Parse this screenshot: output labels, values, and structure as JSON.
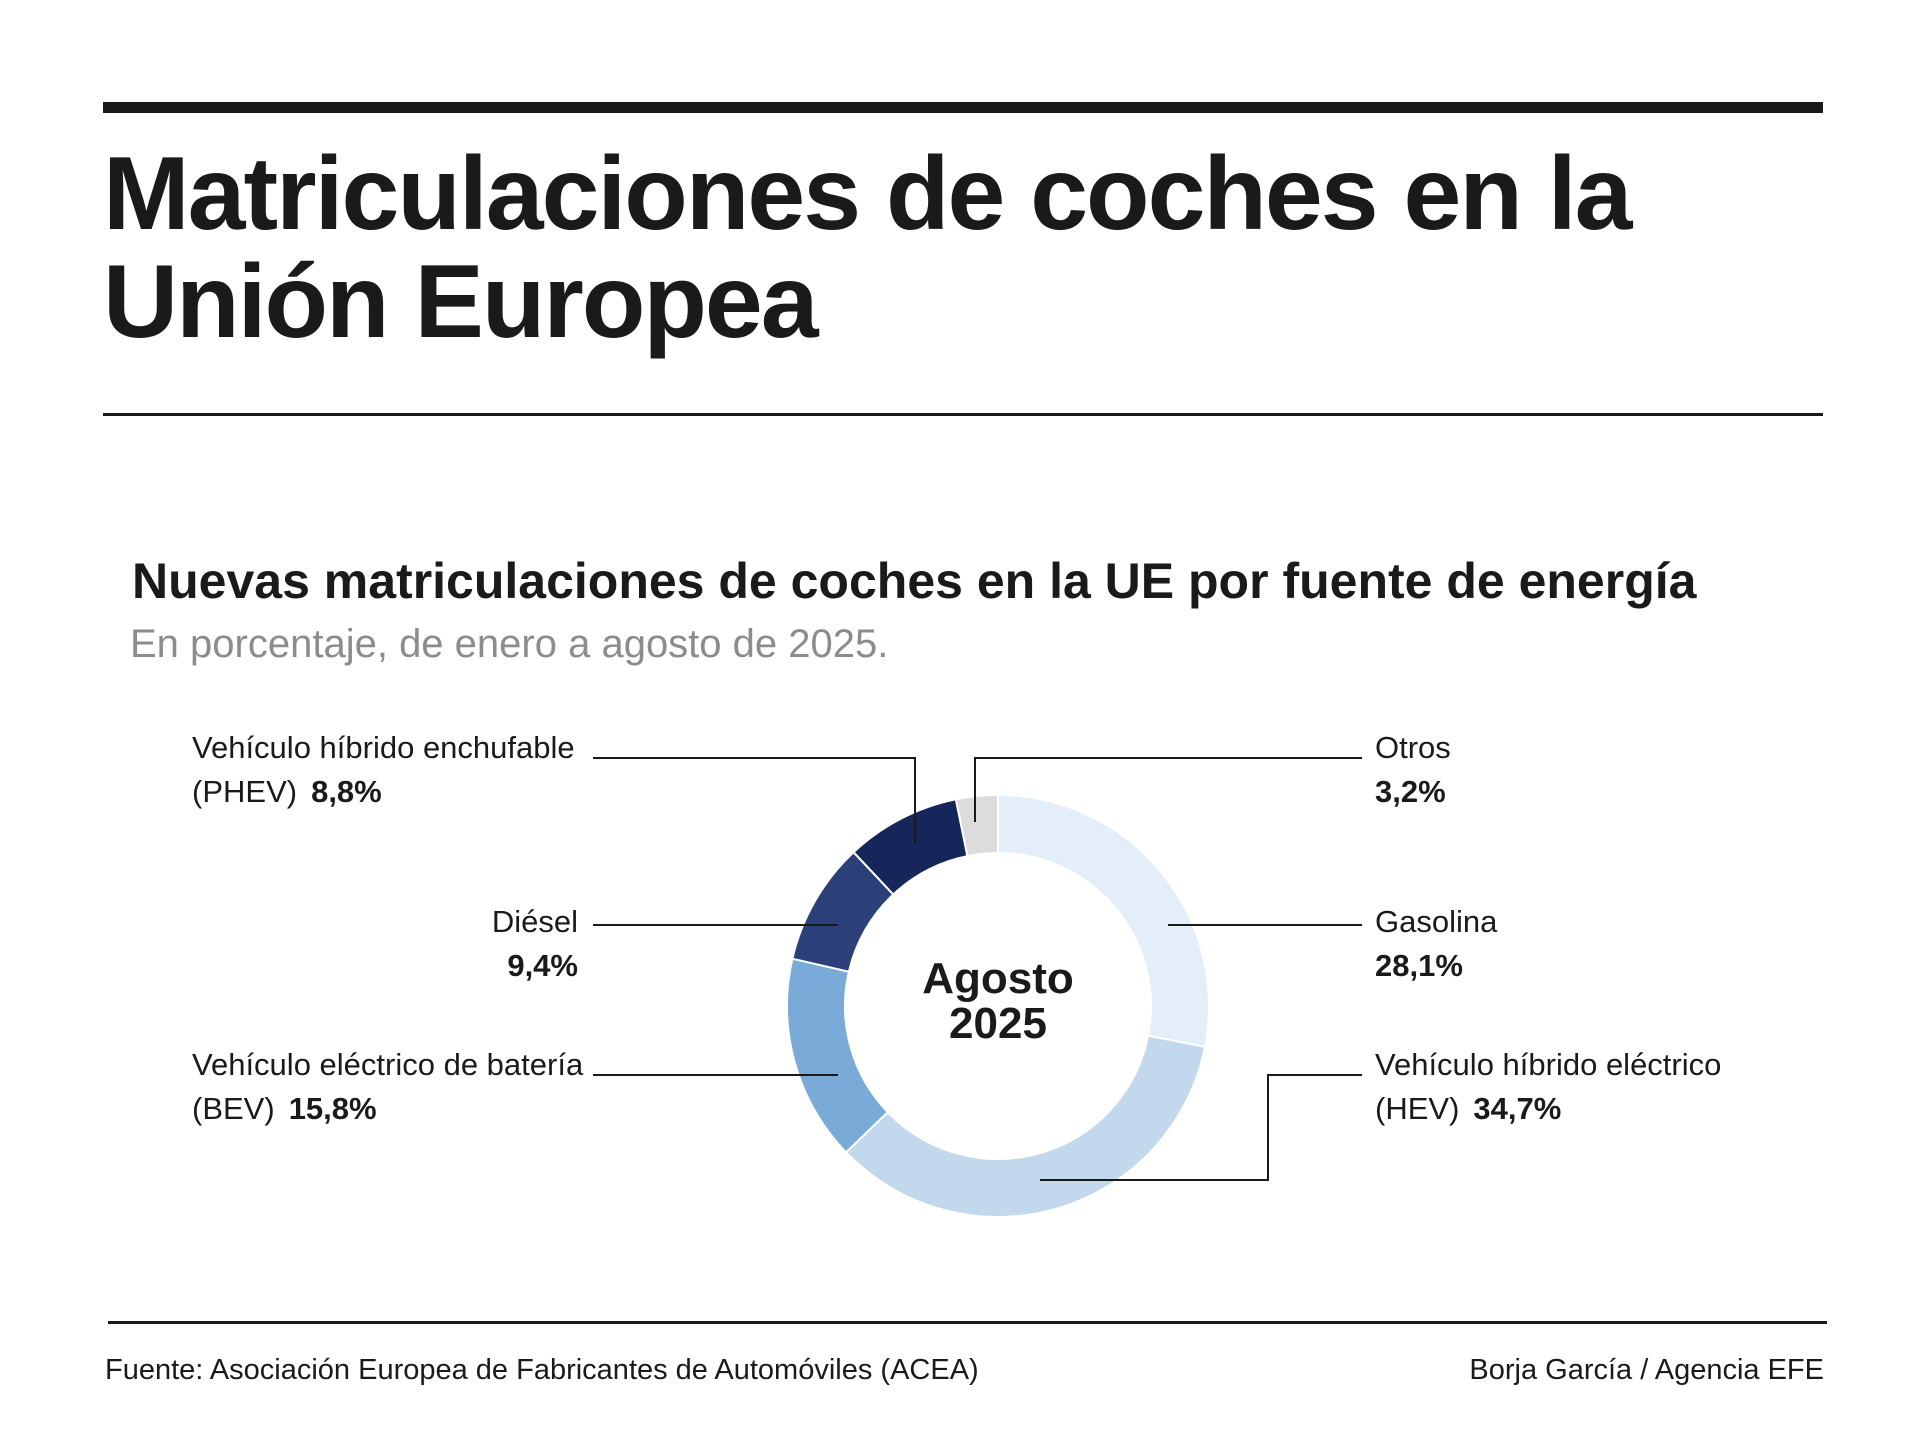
{
  "header": {
    "title": "Matriculaciones de coches en la Unión Europea"
  },
  "chart_data": {
    "type": "pie",
    "title": "Nuevas matriculaciones de coches en la UE por fuente de energía",
    "subtitle": "En porcentaje, de enero a agosto de 2025.",
    "center_label": [
      "Agosto",
      "2025"
    ],
    "slices": [
      {
        "key": "gasolina",
        "label": [
          "Gasolina"
        ],
        "value": 28.1,
        "value_label": "28,1%",
        "color": "#e3eef8"
      },
      {
        "key": "hev",
        "label": [
          "Vehículo híbrido eléctrico",
          "(HEV)"
        ],
        "value": 34.7,
        "value_label": "34,7%",
        "color": "#c2d8ec"
      },
      {
        "key": "bev",
        "label": [
          "Vehículo eléctrico de batería",
          "(BEV)"
        ],
        "value": 15.8,
        "value_label": "15,8%",
        "color": "#79aad8"
      },
      {
        "key": "diesel",
        "label": [
          "Diésel"
        ],
        "value": 9.4,
        "value_label": "9,4%",
        "color": "#2b3f78"
      },
      {
        "key": "phev",
        "label": [
          "Vehículo híbrido enchufable",
          "(PHEV)"
        ],
        "value": 8.8,
        "value_label": "8,8%",
        "color": "#15265a"
      },
      {
        "key": "otros",
        "label": [
          "Otros"
        ],
        "value": 3.2,
        "value_label": "3,2%",
        "color": "#dcdcdc"
      }
    ]
  },
  "footer": {
    "source": "Fuente: Asociación Europea de Fabricantes de Automóviles (ACEA)",
    "credit": "Borja García / Agencia EFE"
  }
}
